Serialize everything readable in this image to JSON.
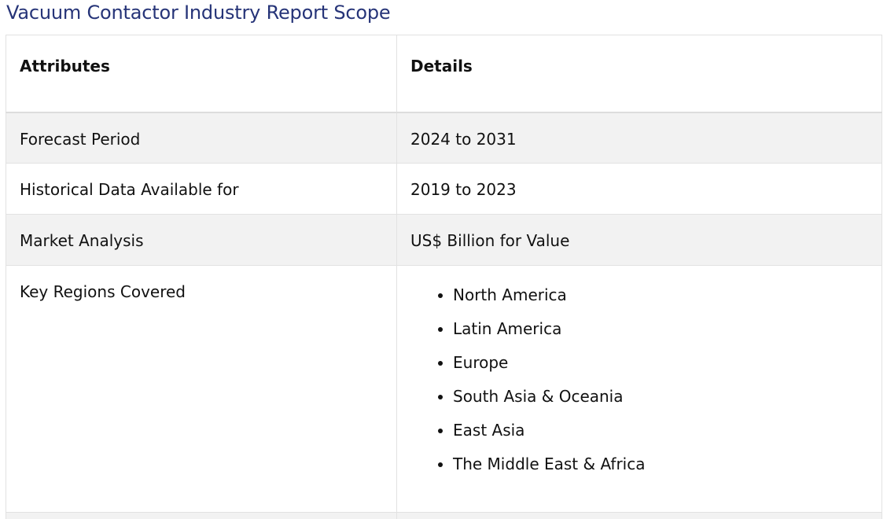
{
  "page": {
    "title": "Vacuum Contactor Industry Report Scope"
  },
  "table": {
    "headers": {
      "attributes": "Attributes",
      "details": "Details"
    },
    "rows": [
      {
        "attribute": "Forecast Period",
        "detail": "2024 to 2031"
      },
      {
        "attribute": "Historical Data Available for",
        "detail": "2019 to 2023"
      },
      {
        "attribute": "Market Analysis",
        "detail": "US$ Billion for Value"
      },
      {
        "attribute": "Key Regions Covered",
        "regions": [
          "North America",
          "Latin America",
          "Europe",
          "South Asia & Oceania",
          "East Asia",
          "The Middle East & Africa"
        ]
      }
    ]
  }
}
